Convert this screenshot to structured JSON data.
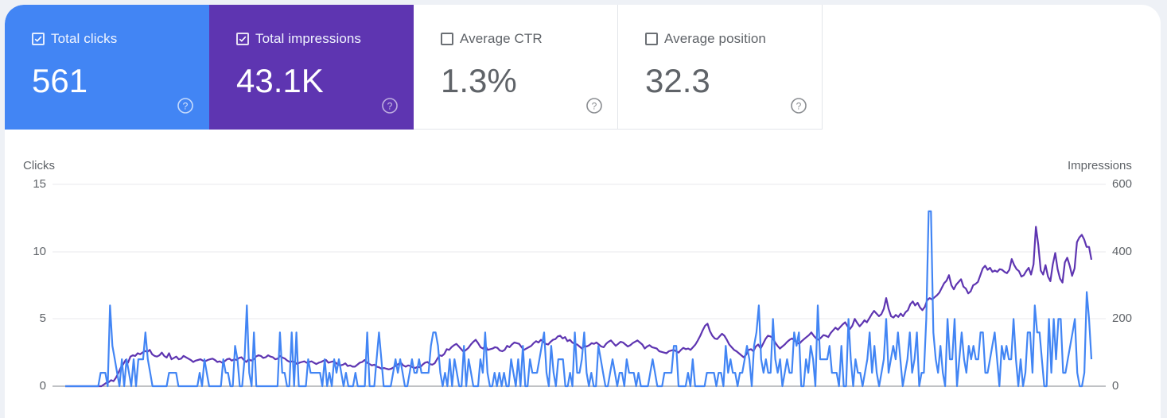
{
  "metrics": [
    {
      "id": "clicks",
      "label": "Total clicks",
      "value": "561",
      "checked": true,
      "color": "#4285f4",
      "help_icon": "help-circle-icon"
    },
    {
      "id": "impressions",
      "label": "Total impressions",
      "value": "43.1K",
      "checked": true,
      "color": "#5e35b1",
      "help_icon": "help-circle-icon"
    },
    {
      "id": "ctr",
      "label": "Average CTR",
      "value": "1.3%",
      "checked": false,
      "color": "#ffffff",
      "help_icon": "help-circle-icon"
    },
    {
      "id": "position",
      "label": "Average position",
      "value": "32.3",
      "checked": false,
      "color": "#ffffff",
      "help_icon": "help-circle-icon"
    }
  ],
  "chart_data": {
    "type": "line",
    "title": "",
    "xlabel": "",
    "left_axis": {
      "label": "Clicks",
      "ticks": [
        "15",
        "10",
        "5",
        "0"
      ],
      "ylim": [
        0,
        15
      ]
    },
    "right_axis": {
      "label": "Impressions",
      "ticks": [
        "600",
        "400",
        "200",
        "0"
      ],
      "ylim": [
        0,
        600
      ]
    },
    "grid": true,
    "legend": "metric tiles above chart",
    "series": [
      {
        "name": "Clicks",
        "axis": "left",
        "color": "#4285f4",
        "values": [
          0,
          0,
          0,
          0,
          0,
          0,
          0,
          0,
          0,
          0,
          0,
          0,
          0,
          0,
          0,
          1,
          1,
          1,
          0,
          6,
          3,
          2,
          1,
          0,
          2,
          0,
          2,
          1,
          0,
          2,
          0,
          2,
          2,
          2,
          4,
          2,
          1,
          0,
          0,
          0,
          0,
          0,
          0,
          0,
          1,
          1,
          1,
          1,
          0,
          0,
          0,
          0,
          0,
          0,
          0,
          0,
          0,
          1,
          0,
          2,
          1,
          0,
          0,
          0,
          0,
          0,
          0,
          2,
          1,
          1,
          0,
          0,
          3,
          2,
          0,
          0,
          2,
          6,
          1,
          0,
          4,
          0,
          0,
          0,
          0,
          0,
          0,
          0,
          0,
          0,
          0,
          4,
          1,
          1,
          0,
          0,
          4,
          0,
          4,
          0,
          0,
          0,
          0,
          2,
          1,
          1,
          1,
          1,
          1,
          0,
          2,
          0,
          1,
          0,
          2,
          1,
          2,
          1,
          0,
          1,
          0,
          0,
          0,
          1,
          0,
          0,
          0,
          0,
          4,
          0,
          0,
          0,
          2,
          4,
          2,
          0,
          0,
          0,
          0,
          1,
          2,
          1,
          2,
          1,
          0,
          0,
          1,
          2,
          1,
          1,
          2,
          1,
          1,
          1,
          1,
          3,
          4,
          4,
          3,
          1,
          0,
          1,
          0,
          2,
          0,
          2,
          1,
          0,
          0,
          3,
          0,
          2,
          1,
          0,
          0,
          0,
          2,
          1,
          4,
          1,
          0,
          0,
          1,
          0,
          1,
          0,
          1,
          0,
          0,
          2,
          1,
          0,
          2,
          0,
          3,
          0,
          0,
          2,
          1,
          1,
          1,
          2,
          3,
          4,
          1,
          0,
          3,
          1,
          0,
          2,
          2,
          2,
          0,
          0,
          1,
          0,
          4,
          1,
          1,
          2,
          4,
          1,
          0,
          1,
          0,
          0,
          3,
          2,
          1,
          0,
          0,
          1,
          2,
          1,
          0,
          1,
          1,
          0,
          2,
          1,
          1,
          1,
          0,
          1,
          0,
          0,
          0,
          0,
          1,
          2,
          1,
          0,
          0,
          0,
          1,
          1,
          1,
          1,
          3,
          3,
          0,
          0,
          0,
          0,
          1,
          0,
          2,
          0,
          0,
          0,
          0,
          0,
          1,
          1,
          1,
          1,
          0,
          1,
          1,
          0,
          3,
          1,
          2,
          1,
          1,
          0,
          1,
          1,
          2,
          3,
          2,
          0,
          3,
          4,
          6,
          2,
          1,
          2,
          1,
          1,
          5,
          2,
          1,
          2,
          0,
          1,
          2,
          1,
          1,
          4,
          3,
          4,
          0,
          0,
          2,
          1,
          3,
          2,
          0,
          6,
          2,
          2,
          2,
          2,
          3,
          1,
          1,
          1,
          0,
          3,
          0,
          0,
          5,
          2,
          0,
          2,
          1,
          1,
          0,
          1,
          2,
          4,
          1,
          3,
          1,
          0,
          1,
          2,
          5,
          1,
          2,
          3,
          2,
          4,
          2,
          0,
          1,
          2,
          4,
          1,
          2,
          4,
          0,
          1,
          1,
          5,
          13,
          13,
          4,
          2,
          1,
          3,
          1,
          0,
          5,
          2,
          2,
          5,
          0,
          2,
          4,
          2,
          1,
          3,
          2,
          3,
          2,
          2,
          4,
          4,
          1,
          1,
          2,
          3,
          4,
          2,
          0,
          3,
          2,
          3,
          2,
          2,
          5,
          2,
          0,
          2,
          0,
          1,
          4,
          4,
          1,
          6,
          4,
          4,
          2,
          0,
          0,
          5,
          1,
          5,
          2,
          5,
          5,
          1,
          1,
          2,
          3,
          4,
          5,
          1,
          0,
          0,
          1,
          7,
          5,
          2
        ]
      },
      {
        "name": "Impressions",
        "axis": "right",
        "color": "#5e35b1",
        "values": [
          0,
          0,
          0,
          0,
          0,
          0,
          0,
          0,
          0,
          0,
          0,
          0,
          0,
          0,
          0,
          0,
          5,
          10,
          12,
          18,
          15,
          25,
          40,
          55,
          65,
          78,
          70,
          88,
          92,
          90,
          98,
          95,
          100,
          105,
          102,
          108,
          95,
          90,
          88,
          92,
          100,
          90,
          85,
          98,
          80,
          84,
          88,
          80,
          82,
          90,
          86,
          82,
          78,
          72,
          76,
          78,
          80,
          76,
          74,
          78,
          80,
          82,
          78,
          72,
          74,
          70,
          74,
          80,
          82,
          76,
          80,
          78,
          84,
          86,
          78,
          72,
          80,
          76,
          80,
          88,
          92,
          90,
          84,
          86,
          92,
          88,
          86,
          80,
          82,
          90,
          85,
          82,
          76,
          72,
          74,
          72,
          66,
          70,
          72,
          74,
          70,
          72,
          74,
          70,
          66,
          70,
          72,
          76,
          78,
          70,
          72,
          74,
          70,
          64,
          62,
          64,
          68,
          60,
          62,
          58,
          58,
          64,
          70,
          72,
          78,
          70,
          66,
          62,
          64,
          58,
          56,
          52,
          54,
          52,
          50,
          52,
          56,
          62,
          66,
          70,
          62,
          58,
          62,
          60,
          56,
          54,
          58,
          56,
          64,
          70,
          72,
          66,
          64,
          68,
          80,
          92,
          90,
          96,
          110,
          108,
          116,
          122,
          126,
          118,
          110,
          102,
          108,
          114,
          124,
          132,
          138,
          128,
          116,
          112,
          120,
          108,
          110,
          112,
          116,
          114,
          106,
          104,
          108,
          120,
          116,
          124,
          130,
          128,
          126,
          116,
          108,
          112,
          116,
          120,
          128,
          134,
          130,
          138,
          132,
          126,
          124,
          132,
          138,
          140,
          148,
          150,
          142,
          146,
          134,
          138,
          130,
          126,
          124,
          118,
          112,
          120,
          118,
          122,
          128,
          126,
          130,
          124,
          118,
          116,
          126,
          132,
          136,
          128,
          120,
          126,
          132,
          130,
          124,
          118,
          122,
          128,
          132,
          136,
          130,
          124,
          112,
          118,
          122,
          116,
          114,
          112,
          104,
          102,
          100,
          98,
          104,
          106,
          108,
          104,
          100,
          108,
          114,
          110,
          112,
          108,
          116,
          124,
          136,
          150,
          166,
          180,
          186,
          164,
          150,
          142,
          140,
          148,
          156,
          150,
          138,
          124,
          116,
          108,
          104,
          98,
          92,
          86,
          94,
          108,
          110,
          104,
          118,
          124,
          112,
          126,
          140,
          150,
          148,
          144,
          130,
          120,
          112,
          118,
          124,
          132,
          138,
          142,
          136,
          130,
          126,
          134,
          140,
          146,
          152,
          160,
          150,
          142,
          138,
          144,
          152,
          150,
          146,
          158,
          166,
          174,
          168,
          176,
          184,
          190,
          178,
          170,
          180,
          200,
          188,
          178,
          186,
          196,
          190,
          202,
          214,
          224,
          216,
          208,
          214,
          230,
          262,
          230,
          208,
          204,
          212,
          206,
          216,
          208,
          220,
          226,
          244,
          252,
          240,
          248,
          234,
          226,
          236,
          256,
          262,
          258,
          264,
          270,
          278,
          292,
          306,
          314,
          330,
          300,
          288,
          302,
          310,
          318,
          296,
          290,
          276,
          282,
          300,
          304,
          310,
          330,
          350,
          358,
          346,
          352,
          340,
          344,
          340,
          348,
          346,
          340,
          336,
          346,
          378,
          360,
          348,
          342,
          326,
          330,
          342,
          352,
          332,
          362,
          474,
          420,
          344,
          332,
          360,
          326,
          312,
          362,
          396,
          348,
          320,
          308,
          368,
          382,
          358,
          328,
          350,
          428,
          442,
          450,
          436,
          414,
          414,
          376
        ]
      }
    ]
  }
}
